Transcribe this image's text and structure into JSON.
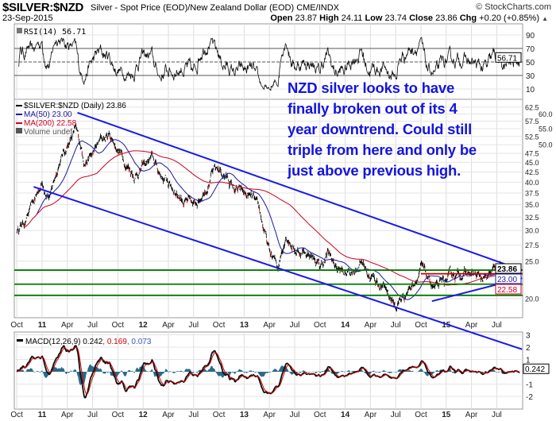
{
  "header": {
    "symbol": "$SILVER:$NZD",
    "description": "Silver - Spot Price (EOD)/New Zealand Dollar (EOD)",
    "exchange": "CME/INDX",
    "brand": "© StockCharts.com",
    "date": "23-Sep-2015",
    "open_label": "Open",
    "open": "23.87",
    "high_label": "High",
    "high": "24.11",
    "low_label": "Low",
    "low": "23.74",
    "close_label": "Close",
    "close": "23.86",
    "chg_label": "Chg",
    "chg": "+0.20 (+0.85%)",
    "chg_arrow": "▲"
  },
  "annotation": [
    "NZD silver looks to have",
    "finally broken out of its 4",
    "year downtrend. Could still",
    "triple from here and only be",
    "just above previous high."
  ],
  "colors": {
    "price": "#000000",
    "ma50": "#1a1aa0",
    "ma200": "#cc0022",
    "trend": "#1a1ae6",
    "support": "#007a00",
    "resist": "#cc0000",
    "hist": "#2a6a8a",
    "annotation": "#1414e0"
  },
  "chart_data": [
    {
      "type": "line",
      "title": "RSI(14) 56.71",
      "legend": "RSI(14) 56.71",
      "last_value": "56.71",
      "yticks": [
        "90",
        "70",
        "50",
        "30",
        "10"
      ],
      "ylim": [
        0,
        100
      ],
      "levels": [
        70,
        50,
        30
      ]
    },
    {
      "type": "line",
      "title": "$SILVER:$NZD (Daily) 23.86",
      "legend": [
        {
          "name": "$SILVER:$NZD (Daily) 23.86",
          "color": "#000000"
        },
        {
          "name": "MA(50) 23.00",
          "color": "#1a1aa0"
        },
        {
          "name": "MA(200) 22.58",
          "color": "#cc0022"
        },
        {
          "name": "Volume undef",
          "color": "#555555"
        }
      ],
      "scale": "log",
      "ylim": [
        19,
        64
      ],
      "yticks": [
        "62.5",
        "60.0",
        "57.5",
        "55.0",
        "52.5",
        "50.0",
        "47.5",
        "45.0",
        "42.5",
        "40.0",
        "37.5",
        "35.0",
        "32.5",
        "30.0",
        "27.5",
        "25.0",
        "20.0"
      ],
      "value_boxes": [
        "23.86",
        "23.00",
        "22.58"
      ],
      "xticks": [
        "Oct",
        "11",
        "Apr",
        "Jul",
        "Oct",
        "12",
        "Apr",
        "Jul",
        "Oct",
        "13",
        "Apr",
        "Jul",
        "Oct",
        "14",
        "Apr",
        "Jul",
        "Oct",
        "15",
        "Apr",
        "Jul"
      ],
      "x_unit": "months since Oct 2010",
      "price_keypoints": [
        [
          0,
          30
        ],
        [
          1,
          32
        ],
        [
          2,
          35
        ],
        [
          3,
          40
        ],
        [
          4,
          37
        ],
        [
          5,
          45
        ],
        [
          6,
          50
        ],
        [
          7,
          54
        ],
        [
          8,
          46
        ],
        [
          9,
          47
        ],
        [
          10,
          51
        ],
        [
          11,
          53
        ],
        [
          12,
          49
        ],
        [
          13,
          45
        ],
        [
          14,
          42
        ],
        [
          15,
          44
        ],
        [
          16,
          46
        ],
        [
          17,
          42
        ],
        [
          18,
          40
        ],
        [
          19,
          38
        ],
        [
          20,
          36
        ],
        [
          21,
          34
        ],
        [
          22,
          38
        ],
        [
          23,
          42
        ],
        [
          24,
          43
        ],
        [
          25,
          41
        ],
        [
          26,
          38
        ],
        [
          27,
          37
        ],
        [
          28,
          36
        ],
        [
          29,
          32
        ],
        [
          30,
          26
        ],
        [
          31,
          24
        ],
        [
          32,
          30
        ],
        [
          33,
          27
        ],
        [
          34,
          26.5
        ],
        [
          35,
          26
        ],
        [
          36,
          24
        ],
        [
          37,
          26
        ],
        [
          38,
          24
        ],
        [
          39,
          23
        ],
        [
          40,
          24
        ],
        [
          41,
          25
        ],
        [
          42,
          23
        ],
        [
          43,
          22
        ],
        [
          44,
          21
        ],
        [
          45,
          19
        ],
        [
          46,
          20.5
        ],
        [
          47,
          22
        ],
        [
          48,
          24
        ],
        [
          49,
          22
        ],
        [
          50,
          21
        ],
        [
          51,
          22
        ],
        [
          52,
          23
        ],
        [
          53,
          23.5
        ],
        [
          54,
          23
        ],
        [
          55,
          22.5
        ],
        [
          56,
          22
        ],
        [
          57,
          24
        ],
        [
          58,
          23
        ],
        [
          59.7,
          23.86
        ]
      ],
      "trendlines": [
        {
          "name": "upper-channel",
          "from": [
            7.2,
            60.5
          ],
          "to": [
            60,
            23.7
          ],
          "color": "#1a1ae6"
        },
        {
          "name": "lower-channel",
          "from": [
            2,
            38.9
          ],
          "to": [
            60,
            14.8
          ],
          "color": "#1a1ae6"
        },
        {
          "name": "recent-support",
          "from": [
            49.3,
            19.7
          ],
          "to": [
            60,
            22.6
          ],
          "color": "#1a1ae6"
        }
      ],
      "horizontal_lines": [
        {
          "price": 23.7,
          "color": "#007a00"
        },
        {
          "price": 21.8,
          "color": "#007a00"
        },
        {
          "price": 20.4,
          "color": "#007a00"
        },
        {
          "price": 23.2,
          "color": "#cc0000",
          "from": 48
        }
      ]
    },
    {
      "type": "line",
      "title": "MACD(12,26,9)",
      "legend_name": "MACD(12,26,9)",
      "values": [
        "0.242",
        "0.169",
        "0.073"
      ],
      "value_colors": [
        "#000000",
        "#cc0000",
        "#3355cc"
      ],
      "last_value": "0.242",
      "yticks": [
        "3",
        "2",
        "1",
        "-1",
        "-2"
      ],
      "ylim": [
        -3.2,
        3.2
      ],
      "xticks": [
        "Oct",
        "11",
        "Apr",
        "Jul",
        "Oct",
        "12",
        "Apr",
        "Jul",
        "Oct",
        "13",
        "Apr",
        "Jul",
        "Oct",
        "14",
        "Apr",
        "Jul",
        "Oct",
        "15",
        "Apr",
        "Jul"
      ]
    }
  ]
}
